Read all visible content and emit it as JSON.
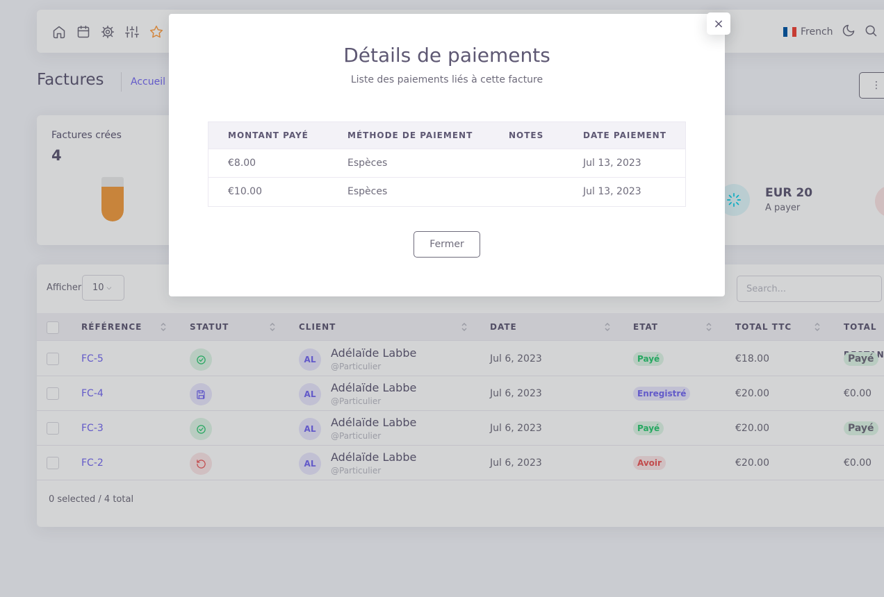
{
  "navbar": {
    "icons": [
      "home-icon",
      "calendar-icon",
      "settings-icon",
      "sliders-icon",
      "star-icon"
    ],
    "language": "French",
    "flag_colors": [
      "#0055a4",
      "#ffffff",
      "#ef4135"
    ]
  },
  "header": {
    "title": "Factures",
    "breadcrumb": "Accueil",
    "menu_button": "⋮"
  },
  "stats": {
    "invoices_label": "Factures crées",
    "invoices_count": "4",
    "bar_fill_fraction": 0.78,
    "to_pay_value": "EUR 20",
    "to_pay_label": "A payer"
  },
  "table": {
    "show_label": "Afficher",
    "page_size": "10",
    "search_placeholder": "Search...",
    "columns": [
      "RÉFÉRENCE",
      "STATUT",
      "CLIENT",
      "DATE",
      "ETAT",
      "TOTAL TTC",
      "TOTAL RESTANT"
    ],
    "rows": [
      {
        "ref": "FC-5",
        "status": "paid",
        "initials": "AL",
        "client": "Adélaïde Labbe",
        "client_type": "@Particulier",
        "date": "Jul 6, 2023",
        "state": "Payé",
        "total": "€18.00",
        "rest": "Payé"
      },
      {
        "ref": "FC-4",
        "status": "saved",
        "initials": "AL",
        "client": "Adélaïde Labbe",
        "client_type": "@Particulier",
        "date": "Jul 6, 2023",
        "state": "Enregistré",
        "total": "€20.00",
        "rest": "€0.00"
      },
      {
        "ref": "FC-3",
        "status": "paid",
        "initials": "AL",
        "client": "Adélaïde Labbe",
        "client_type": "@Particulier",
        "date": "Jul 6, 2023",
        "state": "Payé",
        "total": "€20.00",
        "rest": "Payé"
      },
      {
        "ref": "FC-2",
        "status": "credit",
        "initials": "AL",
        "client": "Adélaïde Labbe",
        "client_type": "@Particulier",
        "date": "Jul 6, 2023",
        "state": "Avoir",
        "total": "€20.00",
        "rest": "€0.00"
      }
    ],
    "footer": "0 selected / 4 total"
  },
  "modal": {
    "title": "Détails de paiements",
    "subtitle": "Liste des paiements liés à cette facture",
    "close_icon": "×",
    "columns": [
      "MONTANT PAYÉ",
      "MÉTHODE DE PAIEMENT",
      "NOTES",
      "DATE PAIEMENT"
    ],
    "payments": [
      {
        "amount": "€8.00",
        "method": "Espèces",
        "notes": "",
        "date": "Jul 13, 2023"
      },
      {
        "amount": "€10.00",
        "method": "Espèces",
        "notes": "",
        "date": "Jul 13, 2023"
      }
    ],
    "close_button": "Fermer"
  }
}
